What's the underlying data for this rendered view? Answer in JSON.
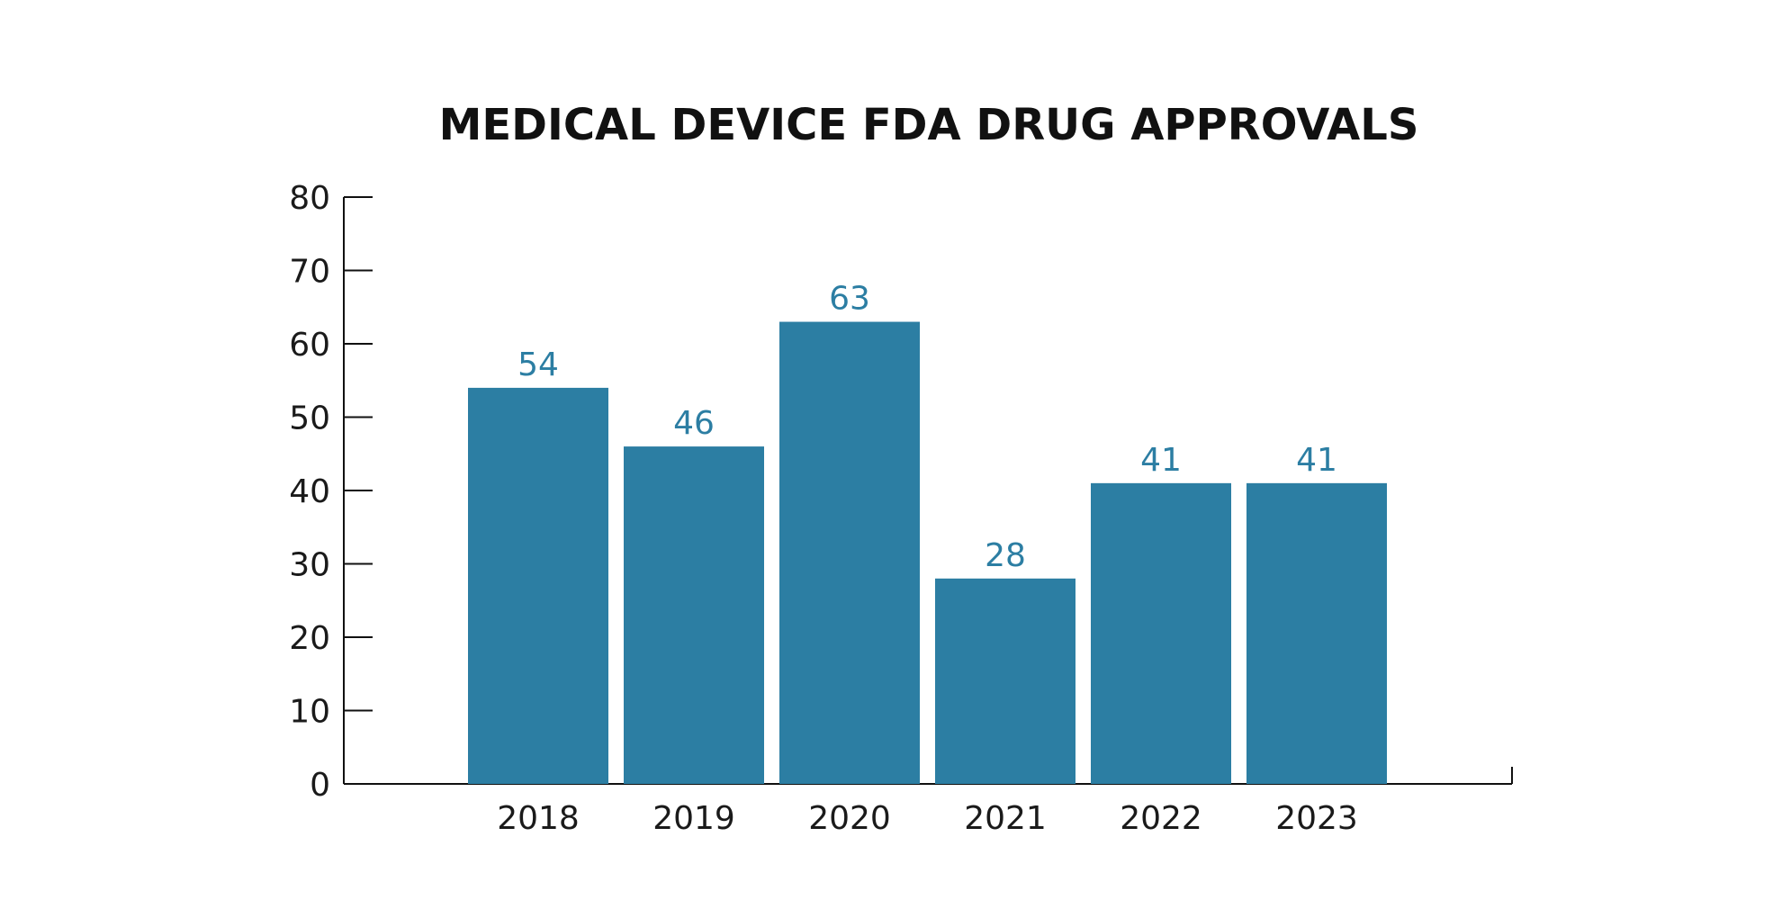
{
  "chart_data": {
    "type": "bar",
    "title": "MEDICAL DEVICE FDA DRUG APPROVALS",
    "xlabel": "",
    "ylabel": "",
    "categories": [
      "2018",
      "2019",
      "2020",
      "2021",
      "2022",
      "2023"
    ],
    "values": [
      54,
      46,
      63,
      28,
      41,
      41
    ],
    "ylim": [
      0,
      80
    ],
    "yticks": [
      0,
      10,
      20,
      30,
      40,
      50,
      60,
      70,
      80
    ],
    "grid": false,
    "legend": "none",
    "data_labels": true,
    "colors": {
      "bar": "#2c7ea3",
      "label": "#2c7ea3",
      "axis": "#111111",
      "text": "#1a1a1a"
    }
  }
}
